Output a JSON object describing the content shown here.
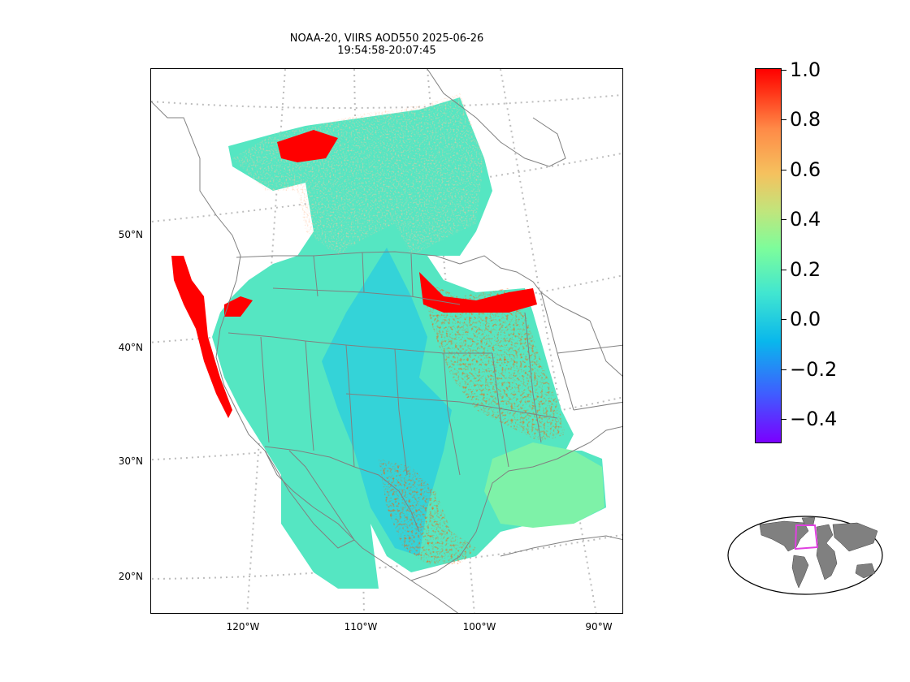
{
  "title": {
    "line1": "NOAA-20, VIIRS AOD550 2025-06-26",
    "line2": "19:54:58-20:07:45"
  },
  "axes": {
    "lat_labels": [
      "50°N",
      "40°N",
      "30°N",
      "20°N"
    ],
    "lon_labels": [
      "120°W",
      "110°W",
      "100°W",
      "90°W"
    ]
  },
  "colorbar": {
    "colormap": "rainbow",
    "ticks": [
      "1.0",
      "0.8",
      "0.6",
      "0.4",
      "0.2",
      "0.0",
      "−0.2",
      "−0.4"
    ]
  },
  "colors": {
    "coastline": "#808080",
    "gridline": "#bdbdbd",
    "inset_land": "#808080",
    "inset_box": "#e040e0",
    "low_aod": "#3cd7d0",
    "high_aod": "#ff0000"
  },
  "inset": {
    "name": "world-locator-map"
  }
}
